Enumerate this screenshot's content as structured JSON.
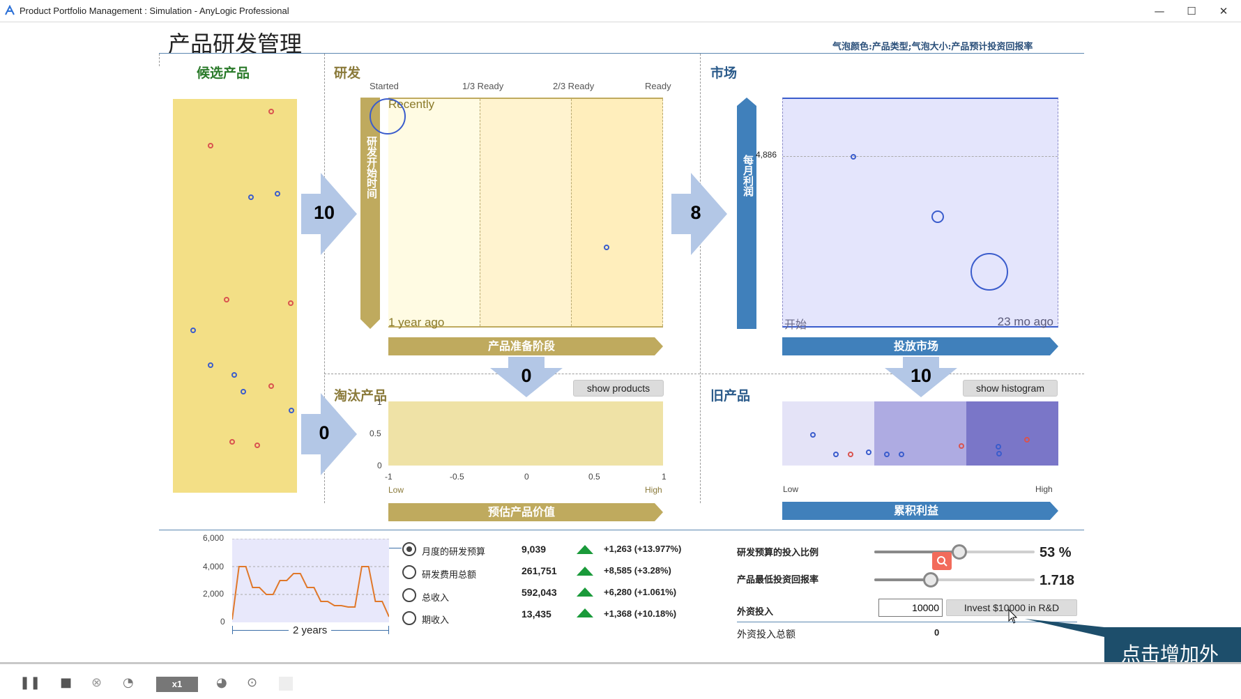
{
  "window": {
    "title": "Product Portfolio Management : Simulation - AnyLogic Professional"
  },
  "page": {
    "title": "产品研发管理",
    "legend_note": "气泡颜色:产品类型;气泡大小:产品预计投资回报率"
  },
  "sections": {
    "candidates": "候选产品",
    "rnd": "研发",
    "market": "市场",
    "retired": "淘汰产品",
    "old": "旧产品"
  },
  "rnd": {
    "stages": [
      "Started",
      "1/3 Ready",
      "2/3 Ready",
      "Ready"
    ],
    "recently": "Recently",
    "year_ago": "1 year ago",
    "vertical_label": "研发开始时间",
    "ribbon": "产品准备阶段"
  },
  "market": {
    "vertical_label": "每月利润",
    "y_value_label": "4,886",
    "start_label": "开始",
    "end_label": "23 mo ago",
    "ribbon": "投放市场"
  },
  "retired": {
    "button": "show products",
    "y_ticks": [
      "1",
      "0.5",
      "0"
    ],
    "x_ticks": [
      "-1",
      "-0.5",
      "0",
      "0.5",
      "1"
    ],
    "low": "Low",
    "high": "High",
    "ribbon": "预估产品价值"
  },
  "old": {
    "button": "show histogram",
    "low": "Low",
    "high": "High",
    "ribbon": "累积利益"
  },
  "flows": {
    "candidates_to_rnd": "10",
    "rnd_to_market": "8",
    "rnd_to_retired": "0",
    "market_to_old": "10",
    "candidates_to_retired": "0"
  },
  "timechart": {
    "y_ticks": [
      "6,000",
      "4,000",
      "2,000",
      "0"
    ],
    "x_label": "2 years",
    "chart_data": {
      "type": "line",
      "ylim": [
        0,
        6000
      ],
      "values": [
        200,
        4000,
        4000,
        2500,
        2500,
        2000,
        2000,
        3000,
        3000,
        3500,
        3500,
        2500,
        2500,
        1500,
        1500,
        1200,
        1200,
        1100,
        1100,
        4000,
        4000,
        1500,
        1500,
        400
      ]
    }
  },
  "metrics": [
    {
      "label": "月度的研发预算",
      "value": "9,039",
      "delta": "+1,263 (+13.977%)",
      "selected": true
    },
    {
      "label": "研发费用总额",
      "value": "261,751",
      "delta": "+8,585 (+3.28%)",
      "selected": false
    },
    {
      "label": "总收入",
      "value": "592,043",
      "delta": "+6,280 (+1.061%)",
      "selected": false
    },
    {
      "label": "期收入",
      "value": "13,435",
      "delta": "+1,368 (+10.18%)",
      "selected": false
    }
  ],
  "controls": {
    "rd_ratio_label": "研发预算的投入比例",
    "rd_ratio_value": "53 %",
    "rd_ratio_fraction": 0.53,
    "min_roi_label": "产品最低投资回报率",
    "min_roi_value": "1.718",
    "min_roi_fraction": 0.35,
    "ext_invest_label": "外资投入",
    "ext_invest_input": "10000",
    "invest_button": "Invest $10000 in R&D",
    "ext_total_label": "外资投入总额",
    "ext_total_value": "0"
  },
  "callout": {
    "text": "点击增加外部资金投入"
  },
  "toolbar": {
    "speed": "x1"
  }
}
